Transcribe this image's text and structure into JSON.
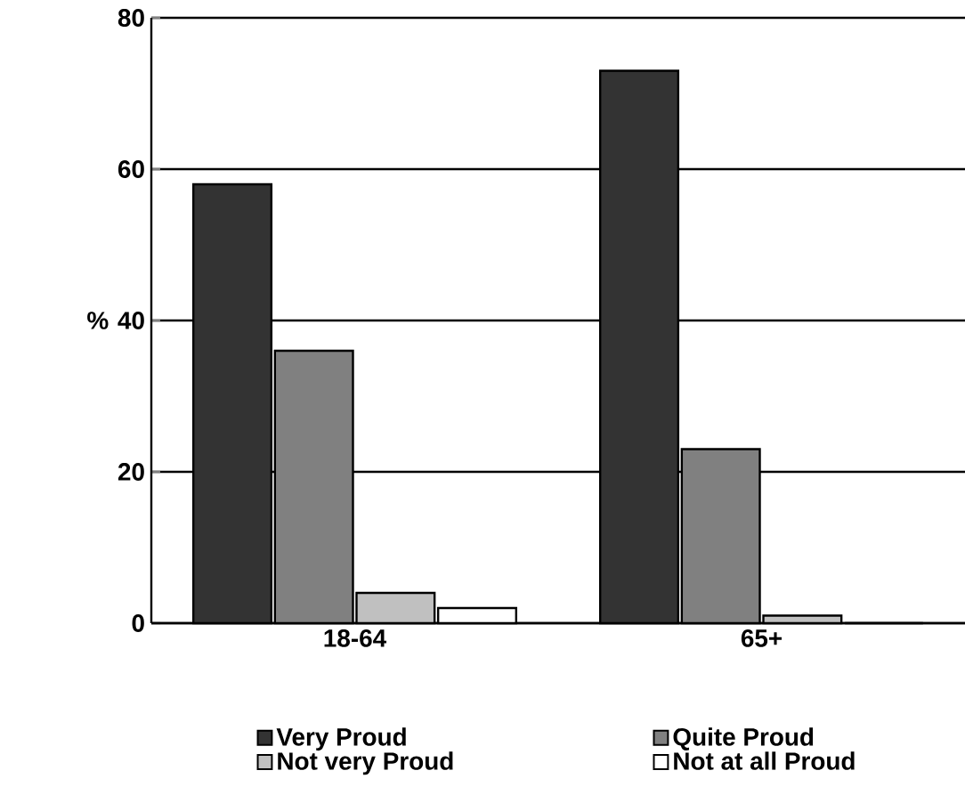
{
  "chart_data": {
    "type": "bar",
    "ylabel": "%",
    "categories": [
      "18-64",
      "65+"
    ],
    "series": [
      {
        "name": "Very Proud",
        "color": "#333333",
        "values": [
          58,
          73
        ]
      },
      {
        "name": "Quite Proud",
        "color": "#808080",
        "values": [
          36,
          23
        ]
      },
      {
        "name": "Not very Proud",
        "color": "#c0c0c0",
        "values": [
          4,
          1
        ]
      },
      {
        "name": "Not at all Proud",
        "color": "#ffffff",
        "values": [
          2,
          0
        ]
      }
    ],
    "ylim": [
      0,
      80
    ],
    "yticks": [
      0,
      20,
      40,
      60,
      80
    ],
    "grid": "y",
    "legend": "bottom"
  }
}
